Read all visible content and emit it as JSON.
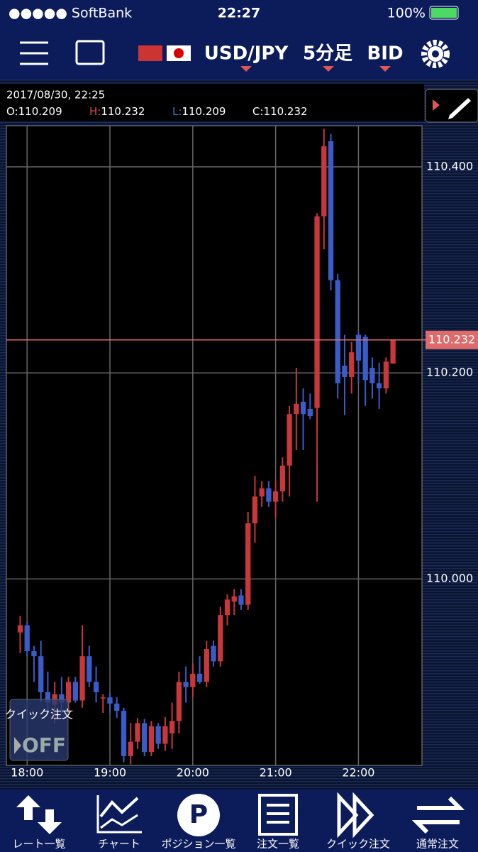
{
  "status_bar": {
    "carrier": "●●●●● SoftBank",
    "time": "22:27",
    "battery": "100%"
  },
  "nav": {
    "pair": "USD/JPY",
    "timeframe": "5分足",
    "price_side": "BID"
  },
  "info": {
    "datetime": "2017/08/30, 22:25",
    "open_label": "O:",
    "open": "110.209",
    "high_label": "H:",
    "high": "110.232",
    "low_label": "L:",
    "low": "110.209",
    "close_label": "C:",
    "close": "110.232"
  },
  "quick_order": {
    "label": "クイック注文",
    "state": "OFF"
  },
  "tabs": [
    "レート一覧",
    "チャート",
    "ポジション一覧",
    "注文一覧",
    "クイック注文",
    "通常注文"
  ],
  "chart_data": {
    "type": "candlestick",
    "up_color": "#c8373a",
    "down_color": "#3a5cc8",
    "grid": true,
    "x": [
      1075,
      1080,
      1085,
      1090,
      1095,
      1100,
      1105,
      1110,
      1115,
      1120,
      1125,
      1130,
      1135,
      1140,
      1145,
      1150,
      1155,
      1160,
      1165,
      1170,
      1175,
      1180,
      1185,
      1190,
      1195,
      1200,
      1205,
      1210,
      1215,
      1220,
      1225,
      1230,
      1235,
      1240,
      1245,
      1250,
      1255,
      1260,
      1265,
      1270,
      1275,
      1280,
      1285,
      1290,
      1295,
      1300,
      1305,
      1310,
      1315,
      1320,
      1325,
      1330,
      1335,
      1340,
      1345
    ],
    "open": [
      109.948,
      109.955,
      109.93,
      109.925,
      109.89,
      109.878,
      109.888,
      109.88,
      109.9,
      109.882,
      109.925,
      109.9,
      109.885,
      109.885,
      109.879,
      109.872,
      109.828,
      109.842,
      109.86,
      109.832,
      109.857,
      109.84,
      109.85,
      109.862,
      109.9,
      109.895,
      109.908,
      109.9,
      109.935,
      109.92,
      109.965,
      109.978,
      109.984,
      109.975,
      110.054,
      110.08,
      110.088,
      110.075,
      110.085,
      110.11,
      110.16,
      110.172,
      110.165,
      110.166,
      110.352,
      110.425,
      110.29,
      110.207,
      110.196,
      110.237,
      110.235,
      110.205,
      110.19,
      110.185,
      110.209
    ],
    "high": [
      109.964,
      109.958,
      109.935,
      109.94,
      109.91,
      109.9,
      109.905,
      109.905,
      109.905,
      109.955,
      109.935,
      109.915,
      109.888,
      109.89,
      109.885,
      109.875,
      109.86,
      109.865,
      109.864,
      109.862,
      109.86,
      109.866,
      109.88,
      109.91,
      109.915,
      109.918,
      109.925,
      109.94,
      109.94,
      109.973,
      109.985,
      109.99,
      109.99,
      110.065,
      110.1,
      110.095,
      110.095,
      110.095,
      110.118,
      110.168,
      110.205,
      110.185,
      110.18,
      110.355,
      110.437,
      110.432,
      110.296,
      110.237,
      110.23,
      110.24,
      110.237,
      110.215,
      110.21,
      110.215,
      110.232
    ],
    "low": [
      109.928,
      109.925,
      109.9,
      109.88,
      109.87,
      109.86,
      109.87,
      109.87,
      109.88,
      109.875,
      109.895,
      109.88,
      109.87,
      109.87,
      109.865,
      109.822,
      109.82,
      109.835,
      109.828,
      109.828,
      109.835,
      109.833,
      109.835,
      109.85,
      109.88,
      109.885,
      109.898,
      109.895,
      109.915,
      109.915,
      109.955,
      109.965,
      109.97,
      109.97,
      110.035,
      110.07,
      110.07,
      110.06,
      110.075,
      110.08,
      110.125,
      110.125,
      110.155,
      110.075,
      110.32,
      110.28,
      110.175,
      110.159,
      110.18,
      110.19,
      110.168,
      110.175,
      110.165,
      110.18,
      110.209
    ],
    "close": [
      109.955,
      109.93,
      109.925,
      109.89,
      109.88,
      109.888,
      109.88,
      109.9,
      109.882,
      109.925,
      109.9,
      109.89,
      109.885,
      109.879,
      109.872,
      109.828,
      109.842,
      109.86,
      109.832,
      109.857,
      109.84,
      109.857,
      109.862,
      109.9,
      109.895,
      109.908,
      109.9,
      109.932,
      109.92,
      109.965,
      109.98,
      109.983,
      109.975,
      110.054,
      110.08,
      110.088,
      110.075,
      110.085,
      110.11,
      110.16,
      110.17,
      110.16,
      110.158,
      110.352,
      110.42,
      110.29,
      110.19,
      110.196,
      110.22,
      110.212,
      110.193,
      110.19,
      110.185,
      110.211,
      110.232
    ],
    "xlim": [
      1065,
      1366
    ],
    "xticks": [
      {
        "value": 1080,
        "label": "18:00"
      },
      {
        "value": 1140,
        "label": "19:00"
      },
      {
        "value": 1200,
        "label": "20:00"
      },
      {
        "value": 1260,
        "label": "21:00"
      },
      {
        "value": 1320,
        "label": "22:00"
      }
    ],
    "ylim": [
      109.819,
      110.44
    ],
    "yticks": [
      {
        "value": 110,
        "label": "110.000"
      },
      {
        "value": 110.2,
        "label": "110.200"
      },
      {
        "value": 110.4,
        "label": "110.400"
      }
    ],
    "current_price": {
      "value": 110.232,
      "label": "110.232"
    }
  }
}
